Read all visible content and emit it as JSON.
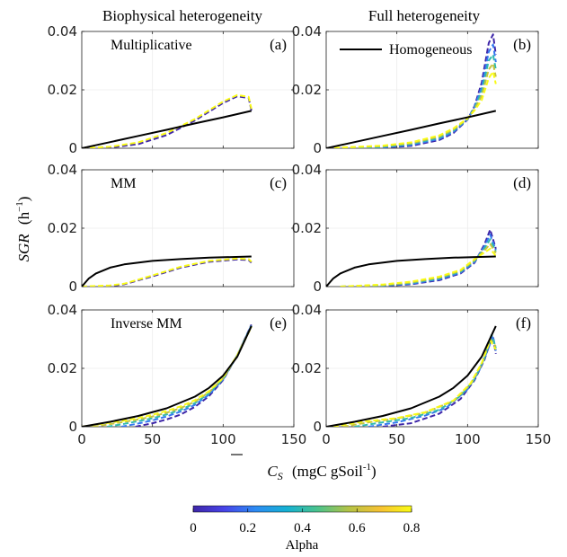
{
  "figure": {
    "column_titles": [
      "Biophysical heterogeneity",
      "Full heterogeneity"
    ],
    "ylabel": "SGR",
    "ylabel_unit": "(h",
    "ylabel_unit_sup": "−1",
    "ylabel_unit_close": ")",
    "xlabel": "C",
    "xlabel_sub": "S",
    "xlabel_unit": "(mgC  gSoil",
    "xlabel_unit_sup": "-1",
    "xlabel_unit_close": ")",
    "colorbar": {
      "label": "Alpha",
      "ticks": [
        "0",
        "0.2",
        "0.4",
        "0.6",
        "0.8"
      ],
      "colormap": [
        "#3e26a8",
        "#4743e8",
        "#2d8bf3",
        "#15b1d3",
        "#4cc38b",
        "#b5c346",
        "#f7c233",
        "#f9fb15"
      ]
    },
    "homogeneous_color": "#000000"
  },
  "chart_data": [
    {
      "type": "line",
      "panel": "(a)",
      "annotation": "Multiplicative",
      "xlim": [
        0,
        150
      ],
      "ylim": [
        0,
        0.04
      ],
      "xticks": [
        "0",
        "50",
        "100",
        "150"
      ],
      "yticks": [
        "0",
        "0.02",
        "0.04"
      ],
      "grid": true,
      "homogeneous": {
        "x": [
          0,
          20,
          40,
          60,
          80,
          100,
          120
        ],
        "y": [
          0,
          0.0021,
          0.0042,
          0.0063,
          0.0085,
          0.0106,
          0.0128
        ]
      },
      "alpha_series": [
        {
          "alpha": 0.0,
          "x": [
            0,
            20,
            40,
            60,
            80,
            100,
            110,
            118,
            120
          ],
          "y": [
            0,
            0.0002,
            0.0014,
            0.0045,
            0.0095,
            0.0155,
            0.0178,
            0.0172,
            0.013
          ]
        },
        {
          "alpha": 0.8,
          "x": [
            0,
            20,
            40,
            60,
            80,
            100,
            110,
            118,
            120
          ],
          "y": [
            0,
            0.0005,
            0.002,
            0.0052,
            0.01,
            0.016,
            0.0182,
            0.0176,
            0.0135
          ]
        }
      ]
    },
    {
      "type": "line",
      "panel": "(b)",
      "legend": [
        {
          "label": "Homogeneous",
          "color": "#000000"
        }
      ],
      "legend_position": "top-center",
      "xlim": [
        0,
        150
      ],
      "ylim": [
        0,
        0.04
      ],
      "xticks": [
        "0",
        "50",
        "100",
        "150"
      ],
      "yticks": [
        "0",
        "0.02",
        "0.04"
      ],
      "grid": true,
      "homogeneous": {
        "x": [
          0,
          20,
          40,
          60,
          80,
          100,
          120
        ],
        "y": [
          0,
          0.0021,
          0.0042,
          0.0063,
          0.0085,
          0.0106,
          0.0128
        ]
      },
      "alpha_series": [
        {
          "alpha": 0.0,
          "x": [
            0,
            40,
            60,
            80,
            90,
            100,
            105,
            110,
            115,
            118,
            120
          ],
          "y": [
            0,
            0.0002,
            0.0008,
            0.0028,
            0.0052,
            0.0098,
            0.0145,
            0.0225,
            0.036,
            0.039,
            0.032
          ]
        },
        {
          "alpha": 0.2,
          "x": [
            0,
            40,
            60,
            80,
            90,
            100,
            105,
            110,
            115,
            118,
            120
          ],
          "y": [
            0,
            0.0003,
            0.0011,
            0.0032,
            0.0056,
            0.0099,
            0.0142,
            0.021,
            0.033,
            0.0355,
            0.0295
          ]
        },
        {
          "alpha": 0.4,
          "x": [
            0,
            40,
            60,
            80,
            90,
            100,
            105,
            110,
            115,
            118,
            120
          ],
          "y": [
            0,
            0.0005,
            0.0014,
            0.0036,
            0.006,
            0.01,
            0.0138,
            0.0195,
            0.03,
            0.032,
            0.027
          ]
        },
        {
          "alpha": 0.6,
          "x": [
            0,
            40,
            60,
            80,
            90,
            100,
            105,
            110,
            115,
            118,
            120
          ],
          "y": [
            0,
            0.0007,
            0.0017,
            0.004,
            0.0064,
            0.0101,
            0.0134,
            0.018,
            0.027,
            0.029,
            0.0245
          ]
        },
        {
          "alpha": 0.8,
          "x": [
            0,
            40,
            60,
            80,
            90,
            100,
            105,
            110,
            115,
            118,
            120
          ],
          "y": [
            0,
            0.0009,
            0.002,
            0.0044,
            0.0068,
            0.0102,
            0.013,
            0.0165,
            0.024,
            0.0262,
            0.022
          ]
        }
      ]
    },
    {
      "type": "line",
      "panel": "(c)",
      "annotation": "MM",
      "xlim": [
        0,
        150
      ],
      "ylim": [
        0,
        0.04
      ],
      "xticks": [
        "0",
        "50",
        "100",
        "150"
      ],
      "yticks": [
        "0",
        "0.02",
        "0.04"
      ],
      "grid": true,
      "homogeneous": {
        "x": [
          0,
          5,
          10,
          20,
          30,
          50,
          70,
          90,
          120
        ],
        "y": [
          0,
          0.0028,
          0.0045,
          0.0065,
          0.0076,
          0.0088,
          0.0094,
          0.0099,
          0.0103
        ]
      },
      "alpha_series": [
        {
          "alpha": 0.0,
          "x": [
            0,
            20,
            30,
            50,
            70,
            90,
            110,
            118,
            120
          ],
          "y": [
            0,
            0.0002,
            0.0008,
            0.0035,
            0.0065,
            0.0085,
            0.0093,
            0.0091,
            0.0082
          ]
        },
        {
          "alpha": 0.8,
          "x": [
            0,
            20,
            30,
            50,
            70,
            90,
            110,
            118,
            120
          ],
          "y": [
            0,
            0.0004,
            0.001,
            0.0038,
            0.0068,
            0.0088,
            0.0096,
            0.0094,
            0.0085
          ]
        }
      ]
    },
    {
      "type": "line",
      "panel": "(d)",
      "xlim": [
        0,
        150
      ],
      "ylim": [
        0,
        0.04
      ],
      "xticks": [
        "0",
        "50",
        "100",
        "150"
      ],
      "yticks": [
        "0",
        "0.02",
        "0.04"
      ],
      "grid": true,
      "homogeneous": {
        "x": [
          0,
          5,
          10,
          20,
          30,
          50,
          70,
          90,
          120
        ],
        "y": [
          0,
          0.0028,
          0.0045,
          0.0065,
          0.0076,
          0.0088,
          0.0094,
          0.0099,
          0.0103
        ]
      },
      "alpha_series": [
        {
          "alpha": 0.0,
          "x": [
            10,
            40,
            60,
            80,
            95,
            105,
            112,
            116,
            120
          ],
          "y": [
            0,
            0.0002,
            0.0008,
            0.0022,
            0.0045,
            0.0082,
            0.0145,
            0.0195,
            0.013
          ]
        },
        {
          "alpha": 0.2,
          "x": [
            10,
            40,
            60,
            80,
            95,
            105,
            112,
            116,
            120
          ],
          "y": [
            0,
            0.0003,
            0.001,
            0.0025,
            0.0048,
            0.0085,
            0.0138,
            0.0178,
            0.0125
          ]
        },
        {
          "alpha": 0.4,
          "x": [
            10,
            40,
            60,
            80,
            95,
            105,
            112,
            116,
            120
          ],
          "y": [
            0,
            0.0004,
            0.0012,
            0.0028,
            0.0051,
            0.0088,
            0.0131,
            0.0162,
            0.012
          ]
        },
        {
          "alpha": 0.6,
          "x": [
            10,
            40,
            60,
            80,
            95,
            105,
            112,
            116,
            120
          ],
          "y": [
            0,
            0.0005,
            0.0014,
            0.0031,
            0.0054,
            0.0091,
            0.0124,
            0.0146,
            0.0115
          ]
        },
        {
          "alpha": 0.8,
          "x": [
            10,
            40,
            60,
            80,
            95,
            105,
            112,
            116,
            120
          ],
          "y": [
            0,
            0.0007,
            0.0017,
            0.0034,
            0.0057,
            0.0094,
            0.0117,
            0.013,
            0.0105
          ]
        }
      ]
    },
    {
      "type": "line",
      "panel": "(e)",
      "annotation": "Inverse MM",
      "xlim": [
        0,
        150
      ],
      "ylim": [
        0,
        0.04
      ],
      "xticks": [
        "0",
        "50",
        "100",
        "150"
      ],
      "yticks": [
        "0",
        "0.02",
        "0.04"
      ],
      "grid": true,
      "homogeneous": {
        "x": [
          0,
          20,
          40,
          60,
          80,
          90,
          100,
          110,
          120
        ],
        "y": [
          0,
          0.0017,
          0.0037,
          0.0063,
          0.0103,
          0.0133,
          0.0175,
          0.024,
          0.0345
        ]
      },
      "alpha_series": [
        {
          "alpha": 0.0,
          "x": [
            38,
            50,
            60,
            70,
            80,
            90,
            100,
            110,
            120
          ],
          "y": [
            0,
            0.0012,
            0.0025,
            0.0042,
            0.0068,
            0.0105,
            0.016,
            0.0245,
            0.035
          ]
        },
        {
          "alpha": 0.2,
          "x": [
            28,
            40,
            50,
            60,
            70,
            80,
            90,
            100,
            110,
            120
          ],
          "y": [
            0,
            0.0011,
            0.0022,
            0.0035,
            0.0052,
            0.0075,
            0.011,
            0.0162,
            0.0245,
            0.0348
          ]
        },
        {
          "alpha": 0.4,
          "x": [
            18,
            30,
            40,
            50,
            60,
            70,
            80,
            90,
            100,
            110,
            120
          ],
          "y": [
            0,
            0.001,
            0.0019,
            0.0029,
            0.0042,
            0.0058,
            0.0081,
            0.0114,
            0.0164,
            0.0245,
            0.0346
          ]
        },
        {
          "alpha": 0.6,
          "x": [
            8,
            20,
            30,
            40,
            50,
            60,
            70,
            80,
            90,
            100,
            110,
            120
          ],
          "y": [
            0,
            0.0009,
            0.0017,
            0.0025,
            0.0035,
            0.0048,
            0.0064,
            0.0086,
            0.0118,
            0.0166,
            0.0245,
            0.0344
          ]
        },
        {
          "alpha": 0.8,
          "x": [
            0,
            10,
            20,
            30,
            40,
            50,
            60,
            70,
            80,
            90,
            100,
            110,
            120
          ],
          "y": [
            0,
            0.0007,
            0.0014,
            0.0021,
            0.003,
            0.0041,
            0.0054,
            0.007,
            0.0091,
            0.0122,
            0.0168,
            0.0245,
            0.0342
          ]
        }
      ]
    },
    {
      "type": "line",
      "panel": "(f)",
      "xlim": [
        0,
        150
      ],
      "ylim": [
        0,
        0.04
      ],
      "xticks": [
        "0",
        "50",
        "100",
        "150"
      ],
      "yticks": [
        "0",
        "0.02",
        "0.04"
      ],
      "grid": true,
      "homogeneous": {
        "x": [
          0,
          20,
          40,
          60,
          80,
          90,
          100,
          110,
          120
        ],
        "y": [
          0,
          0.0017,
          0.0037,
          0.0063,
          0.0103,
          0.0133,
          0.0175,
          0.024,
          0.0345
        ]
      },
      "alpha_series": [
        {
          "alpha": 0.0,
          "x": [
            40,
            60,
            80,
            95,
            105,
            112,
            116,
            118,
            120
          ],
          "y": [
            0,
            0.0012,
            0.0045,
            0.0095,
            0.016,
            0.023,
            0.029,
            0.0305,
            0.025
          ]
        },
        {
          "alpha": 0.2,
          "x": [
            30,
            50,
            70,
            85,
            100,
            108,
            114,
            118,
            120
          ],
          "y": [
            0,
            0.0015,
            0.0038,
            0.0065,
            0.0128,
            0.019,
            0.026,
            0.031,
            0.026
          ]
        },
        {
          "alpha": 0.4,
          "x": [
            20,
            40,
            60,
            80,
            95,
            105,
            112,
            117,
            120
          ],
          "y": [
            0,
            0.0015,
            0.003,
            0.0058,
            0.0105,
            0.0163,
            0.0235,
            0.0315,
            0.027
          ]
        },
        {
          "alpha": 0.6,
          "x": [
            12,
            30,
            50,
            70,
            90,
            102,
            110,
            116,
            120
          ],
          "y": [
            0,
            0.0015,
            0.0028,
            0.0048,
            0.0088,
            0.0145,
            0.0215,
            0.03,
            0.0275
          ]
        },
        {
          "alpha": 0.8,
          "x": [
            5,
            25,
            50,
            70,
            90,
            102,
            110,
            116,
            120
          ],
          "y": [
            0,
            0.0017,
            0.003,
            0.005,
            0.009,
            0.0148,
            0.0218,
            0.0295,
            0.0265
          ]
        }
      ]
    }
  ]
}
